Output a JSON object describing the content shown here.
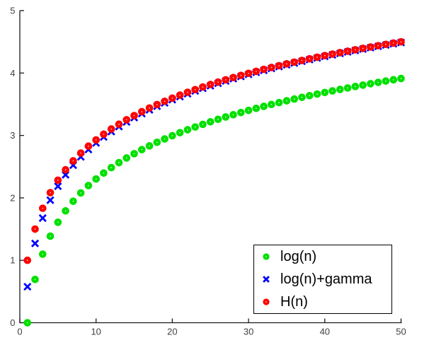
{
  "figure": {
    "background": "#ffffff"
  },
  "colors": {
    "axis": "#1a1a1a",
    "tick_label": "#404040",
    "legend_border": "#000000",
    "background": "#ffffff"
  },
  "chart_data": {
    "type": "scatter",
    "title": "",
    "xlabel": "",
    "ylabel": "",
    "xlim": [
      0,
      50
    ],
    "ylim": [
      0,
      5
    ],
    "xticks": [
      0,
      10,
      20,
      30,
      40,
      50
    ],
    "yticks": [
      0,
      1,
      2,
      3,
      4,
      5
    ],
    "grid": false,
    "box": false,
    "legend": {
      "position": "lower-right"
    },
    "x": [
      1,
      2,
      3,
      4,
      5,
      6,
      7,
      8,
      9,
      10,
      11,
      12,
      13,
      14,
      15,
      16,
      17,
      18,
      19,
      20,
      21,
      22,
      23,
      24,
      25,
      26,
      27,
      28,
      29,
      30,
      31,
      32,
      33,
      34,
      35,
      36,
      37,
      38,
      39,
      40,
      41,
      42,
      43,
      44,
      45,
      46,
      47,
      48,
      49,
      50
    ],
    "series": [
      {
        "name": "log(n)",
        "marker": "circle",
        "color": "#00e000",
        "values": [
          0.0,
          0.6931,
          1.0986,
          1.3863,
          1.6094,
          1.7918,
          1.9459,
          2.0794,
          2.1972,
          2.3026,
          2.3979,
          2.4849,
          2.5649,
          2.6391,
          2.7081,
          2.7726,
          2.8332,
          2.8904,
          2.9444,
          2.9957,
          3.0445,
          3.091,
          3.1355,
          3.1781,
          3.2189,
          3.2581,
          3.2958,
          3.3322,
          3.3673,
          3.4012,
          3.434,
          3.4657,
          3.4965,
          3.5264,
          3.5553,
          3.5835,
          3.6109,
          3.6376,
          3.6636,
          3.6889,
          3.7136,
          3.7377,
          3.7612,
          3.7842,
          3.8067,
          3.8286,
          3.8501,
          3.8712,
          3.8918,
          3.912
        ]
      },
      {
        "name": "log(n)+gamma",
        "marker": "x",
        "color": "#0000ff",
        "values": [
          0.5772,
          1.2704,
          1.6758,
          1.9635,
          2.1866,
          2.369,
          2.5231,
          2.6566,
          2.7744,
          2.8798,
          2.9751,
          3.0621,
          3.1421,
          3.2163,
          3.2853,
          3.3498,
          3.4104,
          3.4676,
          3.5216,
          3.5729,
          3.6217,
          3.6682,
          3.7127,
          3.7553,
          3.7961,
          3.8353,
          3.873,
          3.9094,
          3.9445,
          3.9784,
          4.0112,
          4.0429,
          4.0737,
          4.1036,
          4.1325,
          4.1607,
          4.1881,
          4.2148,
          4.2408,
          4.2661,
          4.2908,
          4.3149,
          4.3384,
          4.3614,
          4.3839,
          4.4058,
          4.4273,
          4.4484,
          4.469,
          4.4892
        ]
      },
      {
        "name": "H(n)",
        "marker": "circle",
        "color": "#ff0000",
        "values": [
          1.0,
          1.5,
          1.8333,
          2.0833,
          2.2833,
          2.45,
          2.5929,
          2.7179,
          2.829,
          2.929,
          3.0199,
          3.1032,
          3.1801,
          3.2516,
          3.3182,
          3.3807,
          3.4396,
          3.4951,
          3.5477,
          3.5977,
          3.6454,
          3.6908,
          3.7343,
          3.776,
          3.816,
          3.8544,
          3.8915,
          3.9272,
          3.9617,
          3.995,
          4.0272,
          4.0585,
          4.0888,
          4.1182,
          4.1468,
          4.1746,
          4.2016,
          4.2279,
          4.2535,
          4.2785,
          4.3029,
          4.3267,
          4.35,
          4.3727,
          4.3949,
          4.4167,
          4.438,
          4.4588,
          4.4792,
          4.4992
        ]
      }
    ]
  }
}
